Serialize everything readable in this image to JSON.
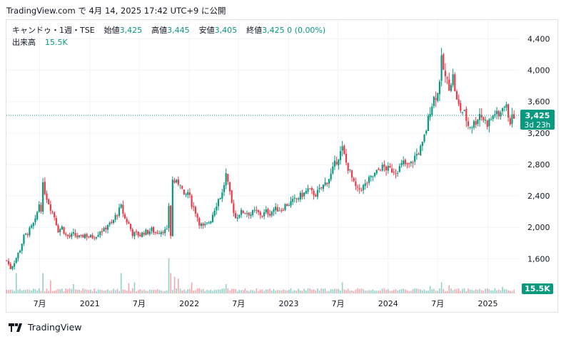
{
  "header": {
    "site": "TradingView.com",
    "particle": "で",
    "datetime": "4月 14, 2025 17:42 UTC+9",
    "published": "に公開"
  },
  "legend": {
    "symbol": "キャンドゥ・1週・TSE",
    "open_label": "始値",
    "open": "3,425",
    "high_label": "高値",
    "high": "3,445",
    "low_label": "安値",
    "low": "3,405",
    "close_label": "終値",
    "close": "3,425",
    "change": "0 (0.00%)",
    "volume_label": "出来高",
    "volume": "15.5K"
  },
  "price_badge": {
    "price": "3,425",
    "countdown": "3d 23h"
  },
  "volume_badge": "15.5K",
  "footer": {
    "brand": "TradingView"
  },
  "colors": {
    "up": "#089981",
    "down": "#f23645",
    "text": "#131722",
    "grid": "#f0f3fa"
  },
  "chart_data": {
    "type": "candlestick",
    "interval": "1 week",
    "y_ticks": [
      "4,400",
      "4,000",
      "3,600",
      "3,200",
      "2,800",
      "2,400",
      "2,000",
      "1,600"
    ],
    "y_tick_values": [
      4400,
      4000,
      3600,
      3200,
      2800,
      2400,
      2000,
      1600
    ],
    "ylim": [
      1150,
      4640
    ],
    "x_ticks": [
      "7月",
      "2021",
      "7月",
      "2022",
      "7月",
      "2023",
      "7月",
      "2024",
      "7月",
      "2025"
    ],
    "x_tick_dates": [
      "2020-07-01",
      "2021-01-01",
      "2021-07-01",
      "2022-01-01",
      "2022-07-01",
      "2023-01-01",
      "2023-07-01",
      "2024-01-01",
      "2024-07-01",
      "2025-01-01"
    ],
    "xlim": [
      "2020-03-01",
      "2025-04-25"
    ],
    "last_price": 3425,
    "close_path": [
      [
        "2020-03-02",
        1580
      ],
      [
        "2020-03-16",
        1480
      ],
      [
        "2020-03-30",
        1560
      ],
      [
        "2020-04-20",
        1720
      ],
      [
        "2020-05-04",
        1880
      ],
      [
        "2020-05-18",
        1930
      ],
      [
        "2020-06-01",
        2000
      ],
      [
        "2020-06-15",
        2080
      ],
      [
        "2020-06-29",
        2300
      ],
      [
        "2020-07-06",
        2240
      ],
      [
        "2020-07-13",
        2530
      ],
      [
        "2020-07-27",
        2380
      ],
      [
        "2020-08-10",
        2250
      ],
      [
        "2020-08-24",
        2140
      ],
      [
        "2020-09-07",
        1960
      ],
      [
        "2020-09-21",
        2000
      ],
      [
        "2020-10-05",
        1900
      ],
      [
        "2020-10-19",
        1880
      ],
      [
        "2020-11-02",
        1910
      ],
      [
        "2020-11-16",
        1880
      ],
      [
        "2020-11-30",
        1870
      ],
      [
        "2020-12-14",
        1910
      ],
      [
        "2020-12-28",
        1880
      ],
      [
        "2021-01-11",
        1880
      ],
      [
        "2021-01-25",
        1900
      ],
      [
        "2021-02-08",
        1960
      ],
      [
        "2021-02-22",
        1960
      ],
      [
        "2021-03-08",
        2040
      ],
      [
        "2021-03-22",
        2040
      ],
      [
        "2021-04-05",
        2140
      ],
      [
        "2021-04-19",
        2220
      ],
      [
        "2021-04-26",
        2260
      ],
      [
        "2021-05-10",
        2110
      ],
      [
        "2021-05-24",
        2040
      ],
      [
        "2021-06-07",
        1920
      ],
      [
        "2021-06-21",
        1920
      ],
      [
        "2021-07-05",
        1900
      ],
      [
        "2021-07-19",
        1940
      ],
      [
        "2021-08-02",
        1940
      ],
      [
        "2021-08-16",
        1970
      ],
      [
        "2021-08-30",
        1930
      ],
      [
        "2021-09-13",
        1950
      ],
      [
        "2021-09-27",
        1960
      ],
      [
        "2021-10-11",
        1950
      ],
      [
        "2021-10-18",
        2280
      ],
      [
        "2021-10-25",
        1900
      ],
      [
        "2021-11-01",
        2600
      ],
      [
        "2021-11-15",
        2560
      ],
      [
        "2021-11-29",
        2580
      ],
      [
        "2021-12-13",
        2380
      ],
      [
        "2021-12-27",
        2450
      ],
      [
        "2022-01-10",
        2300
      ],
      [
        "2022-01-24",
        2200
      ],
      [
        "2022-02-07",
        2060
      ],
      [
        "2022-02-21",
        2000
      ],
      [
        "2022-03-07",
        2040
      ],
      [
        "2022-03-21",
        2100
      ],
      [
        "2022-04-04",
        2240
      ],
      [
        "2022-04-18",
        2360
      ],
      [
        "2022-05-02",
        2430
      ],
      [
        "2022-05-16",
        2670
      ],
      [
        "2022-05-23",
        2540
      ],
      [
        "2022-06-06",
        2300
      ],
      [
        "2022-06-20",
        2120
      ],
      [
        "2022-07-04",
        2180
      ],
      [
        "2022-07-18",
        2200
      ],
      [
        "2022-08-01",
        2190
      ],
      [
        "2022-08-15",
        2170
      ],
      [
        "2022-08-29",
        2200
      ],
      [
        "2022-09-12",
        2180
      ],
      [
        "2022-09-26",
        2150
      ],
      [
        "2022-10-10",
        2200
      ],
      [
        "2022-10-24",
        2180
      ],
      [
        "2022-11-07",
        2230
      ],
      [
        "2022-11-21",
        2230
      ],
      [
        "2022-12-05",
        2230
      ],
      [
        "2022-12-19",
        2280
      ],
      [
        "2023-01-02",
        2300
      ],
      [
        "2023-01-16",
        2330
      ],
      [
        "2023-01-30",
        2360
      ],
      [
        "2023-02-13",
        2400
      ],
      [
        "2023-02-27",
        2430
      ],
      [
        "2023-03-13",
        2480
      ],
      [
        "2023-03-27",
        2440
      ],
      [
        "2023-04-10",
        2420
      ],
      [
        "2023-04-24",
        2470
      ],
      [
        "2023-05-08",
        2530
      ],
      [
        "2023-05-22",
        2590
      ],
      [
        "2023-06-05",
        2670
      ],
      [
        "2023-06-19",
        2800
      ],
      [
        "2023-07-03",
        2900
      ],
      [
        "2023-07-17",
        3000
      ],
      [
        "2023-07-31",
        2820
      ],
      [
        "2023-08-14",
        2700
      ],
      [
        "2023-08-28",
        2550
      ],
      [
        "2023-09-11",
        2470
      ],
      [
        "2023-09-25",
        2500
      ],
      [
        "2023-10-09",
        2540
      ],
      [
        "2023-10-23",
        2600
      ],
      [
        "2023-11-06",
        2650
      ],
      [
        "2023-11-20",
        2700
      ],
      [
        "2023-12-04",
        2760
      ],
      [
        "2023-12-18",
        2760
      ],
      [
        "2024-01-01",
        2740
      ],
      [
        "2024-01-15",
        2730
      ],
      [
        "2024-01-29",
        2720
      ],
      [
        "2024-02-12",
        2760
      ],
      [
        "2024-02-26",
        2820
      ],
      [
        "2024-03-11",
        2780
      ],
      [
        "2024-03-25",
        2810
      ],
      [
        "2024-04-08",
        2900
      ],
      [
        "2024-04-22",
        2960
      ],
      [
        "2024-05-06",
        3050
      ],
      [
        "2024-05-20",
        3250
      ],
      [
        "2024-06-03",
        3500
      ],
      [
        "2024-06-17",
        3650
      ],
      [
        "2024-07-01",
        3700
      ],
      [
        "2024-07-08",
        3900
      ],
      [
        "2024-07-15",
        4120
      ],
      [
        "2024-07-29",
        3900
      ],
      [
        "2024-08-12",
        3800
      ],
      [
        "2024-08-26",
        3920
      ],
      [
        "2024-09-09",
        3600
      ],
      [
        "2024-09-23",
        3500
      ],
      [
        "2024-10-07",
        3450
      ],
      [
        "2024-10-21",
        3300
      ],
      [
        "2024-11-04",
        3300
      ],
      [
        "2024-11-18",
        3350
      ],
      [
        "2024-12-02",
        3450
      ],
      [
        "2024-12-16",
        3380
      ],
      [
        "2024-12-30",
        3320
      ],
      [
        "2025-01-13",
        3380
      ],
      [
        "2025-01-27",
        3460
      ],
      [
        "2025-02-10",
        3400
      ],
      [
        "2025-02-24",
        3560
      ],
      [
        "2025-03-10",
        3520
      ],
      [
        "2025-03-24",
        3350
      ],
      [
        "2025-04-07",
        3425
      ]
    ],
    "volume_spikes": [
      [
        "2020-04-06",
        0.55
      ],
      [
        "2020-07-13",
        0.55
      ],
      [
        "2020-08-10",
        0.35
      ],
      [
        "2020-11-02",
        0.25
      ],
      [
        "2021-04-26",
        0.55
      ],
      [
        "2021-05-24",
        0.28
      ],
      [
        "2021-06-14",
        0.3
      ],
      [
        "2021-10-18",
        0.95
      ],
      [
        "2021-10-25",
        0.55
      ],
      [
        "2021-11-08",
        0.45
      ],
      [
        "2021-11-22",
        0.4
      ],
      [
        "2022-01-10",
        0.3
      ],
      [
        "2022-05-16",
        0.25
      ],
      [
        "2023-07-17",
        0.3
      ],
      [
        "2024-06-03",
        0.2
      ],
      [
        "2024-07-15",
        0.3
      ],
      [
        "2024-08-12",
        0.22
      ],
      [
        "2025-02-24",
        0.18
      ]
    ]
  }
}
